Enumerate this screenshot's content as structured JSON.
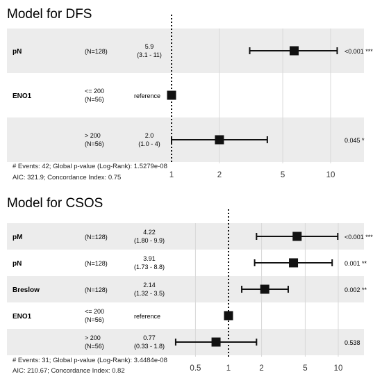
{
  "chart_data": [
    {
      "type": "forest",
      "title": "Model for DFS",
      "scale": "log",
      "xlim": [
        0.9,
        15
      ],
      "reference_line": 1,
      "ticks": [
        "1",
        "2",
        "5",
        "10"
      ],
      "tick_values": [
        1,
        2,
        5,
        10
      ],
      "rows": [
        {
          "variable": "pN",
          "level": "",
          "n": "(N=128)",
          "hr": 5.9,
          "ci_low": 3.1,
          "ci_high": 11,
          "hr_text": "5.9",
          "ci_text": "(3.1 - 11)",
          "p": "<0.001 ***",
          "shaded": true,
          "reference": false
        },
        {
          "variable": "ENO1",
          "level": "<= 200",
          "n": "(N=56)",
          "hr": 1,
          "ci_low": null,
          "ci_high": null,
          "hr_text": "reference",
          "ci_text": "",
          "p": "",
          "shaded": false,
          "reference": true
        },
        {
          "variable": "",
          "level": "> 200",
          "n": "(N=56)",
          "hr": 2.0,
          "ci_low": 1.0,
          "ci_high": 4,
          "hr_text": "2.0",
          "ci_text": "(1.0 - 4)",
          "p": "0.045 *",
          "shaded": true,
          "reference": false
        }
      ],
      "footer": [
        "# Events: 42; Global p-value (Log-Rank): 1.5279e-08",
        "AIC: 321.9; Concordance Index: 0.75"
      ]
    },
    {
      "type": "forest",
      "title": "Model for CSOS",
      "scale": "log",
      "xlim": [
        0.33,
        11
      ],
      "reference_line": 1,
      "ticks": [
        "0.5",
        "1",
        "2",
        "5",
        "10"
      ],
      "tick_values": [
        0.5,
        1,
        2,
        5,
        10
      ],
      "rows": [
        {
          "variable": "pM",
          "level": "",
          "n": "(N=128)",
          "hr": 4.22,
          "ci_low": 1.8,
          "ci_high": 9.9,
          "hr_text": "4.22",
          "ci_text": "(1.80 - 9.9)",
          "p": "<0.001 ***",
          "shaded": true,
          "reference": false
        },
        {
          "variable": "pN",
          "level": "",
          "n": "(N=128)",
          "hr": 3.91,
          "ci_low": 1.73,
          "ci_high": 8.8,
          "hr_text": "3.91",
          "ci_text": "(1.73 - 8.8)",
          "p": "0.001 **",
          "shaded": false,
          "reference": false
        },
        {
          "variable": "Breslow",
          "level": "",
          "n": "(N=128)",
          "hr": 2.14,
          "ci_low": 1.32,
          "ci_high": 3.5,
          "hr_text": "2.14",
          "ci_text": "(1.32 - 3.5)",
          "p": "0.002 **",
          "shaded": true,
          "reference": false
        },
        {
          "variable": "ENO1",
          "level": "<= 200",
          "n": "(N=56)",
          "hr": 1,
          "ci_low": null,
          "ci_high": null,
          "hr_text": "reference",
          "ci_text": "",
          "p": "",
          "shaded": false,
          "reference": true
        },
        {
          "variable": "",
          "level": "> 200",
          "n": "(N=56)",
          "hr": 0.77,
          "ci_low": 0.33,
          "ci_high": 1.8,
          "hr_text": "0.77",
          "ci_text": "(0.33 - 1.8)",
          "p": "0.538",
          "shaded": true,
          "reference": false
        }
      ],
      "footer": [
        "# Events: 31; Global p-value (Log-Rank): 3.4484e-08",
        "AIC: 210.67; Concordance Index: 0.82"
      ]
    }
  ]
}
